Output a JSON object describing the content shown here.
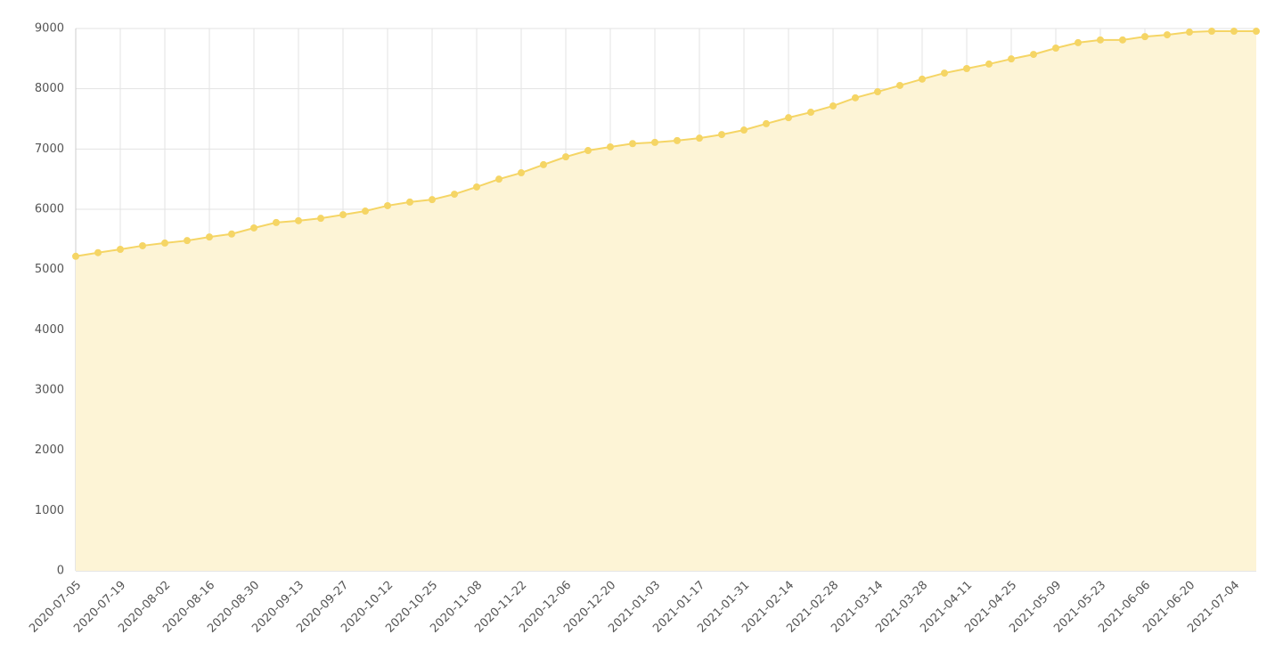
{
  "chart_data": {
    "type": "area",
    "categories": [
      "2020-07-05",
      null,
      "2020-07-19",
      null,
      "2020-08-02",
      null,
      "2020-08-16",
      null,
      "2020-08-30",
      null,
      "2020-09-13",
      null,
      "2020-09-27",
      null,
      "2020-10-12",
      null,
      "2020-10-25",
      null,
      "2020-11-08",
      null,
      "2020-11-22",
      null,
      "2020-12-06",
      null,
      "2020-12-20",
      null,
      "2021-01-03",
      null,
      "2021-01-17",
      null,
      "2021-01-31",
      null,
      "2021-02-14",
      null,
      "2021-02-28",
      null,
      "2021-03-14",
      null,
      "2021-03-28",
      null,
      "2021-04-11",
      null,
      "2021-04-25",
      null,
      "2021-05-09",
      null,
      "2021-05-23",
      null,
      "2021-06-06",
      null,
      "2021-06-20",
      null,
      "2021-07-04",
      null
    ],
    "values": [
      5220,
      5280,
      5335,
      5395,
      5440,
      5480,
      5540,
      5590,
      5690,
      5780,
      5810,
      5850,
      5910,
      5970,
      6060,
      6120,
      6160,
      6250,
      6370,
      6500,
      6605,
      6740,
      6870,
      6975,
      7035,
      7090,
      7110,
      7140,
      7180,
      7240,
      7315,
      7420,
      7520,
      7610,
      7715,
      7850,
      7950,
      8055,
      8160,
      8260,
      8335,
      8410,
      8495,
      8570,
      8675,
      8765,
      8810,
      8810,
      8865,
      8895,
      8940,
      8955,
      8955,
      8955
    ],
    "color": "#f5d565",
    "fill_color": "#fdf4d6",
    "ylim": [
      0,
      9000
    ],
    "yticks": [
      0,
      1000,
      2000,
      3000,
      4000,
      5000,
      6000,
      7000,
      8000,
      9000
    ],
    "grid": true
  }
}
